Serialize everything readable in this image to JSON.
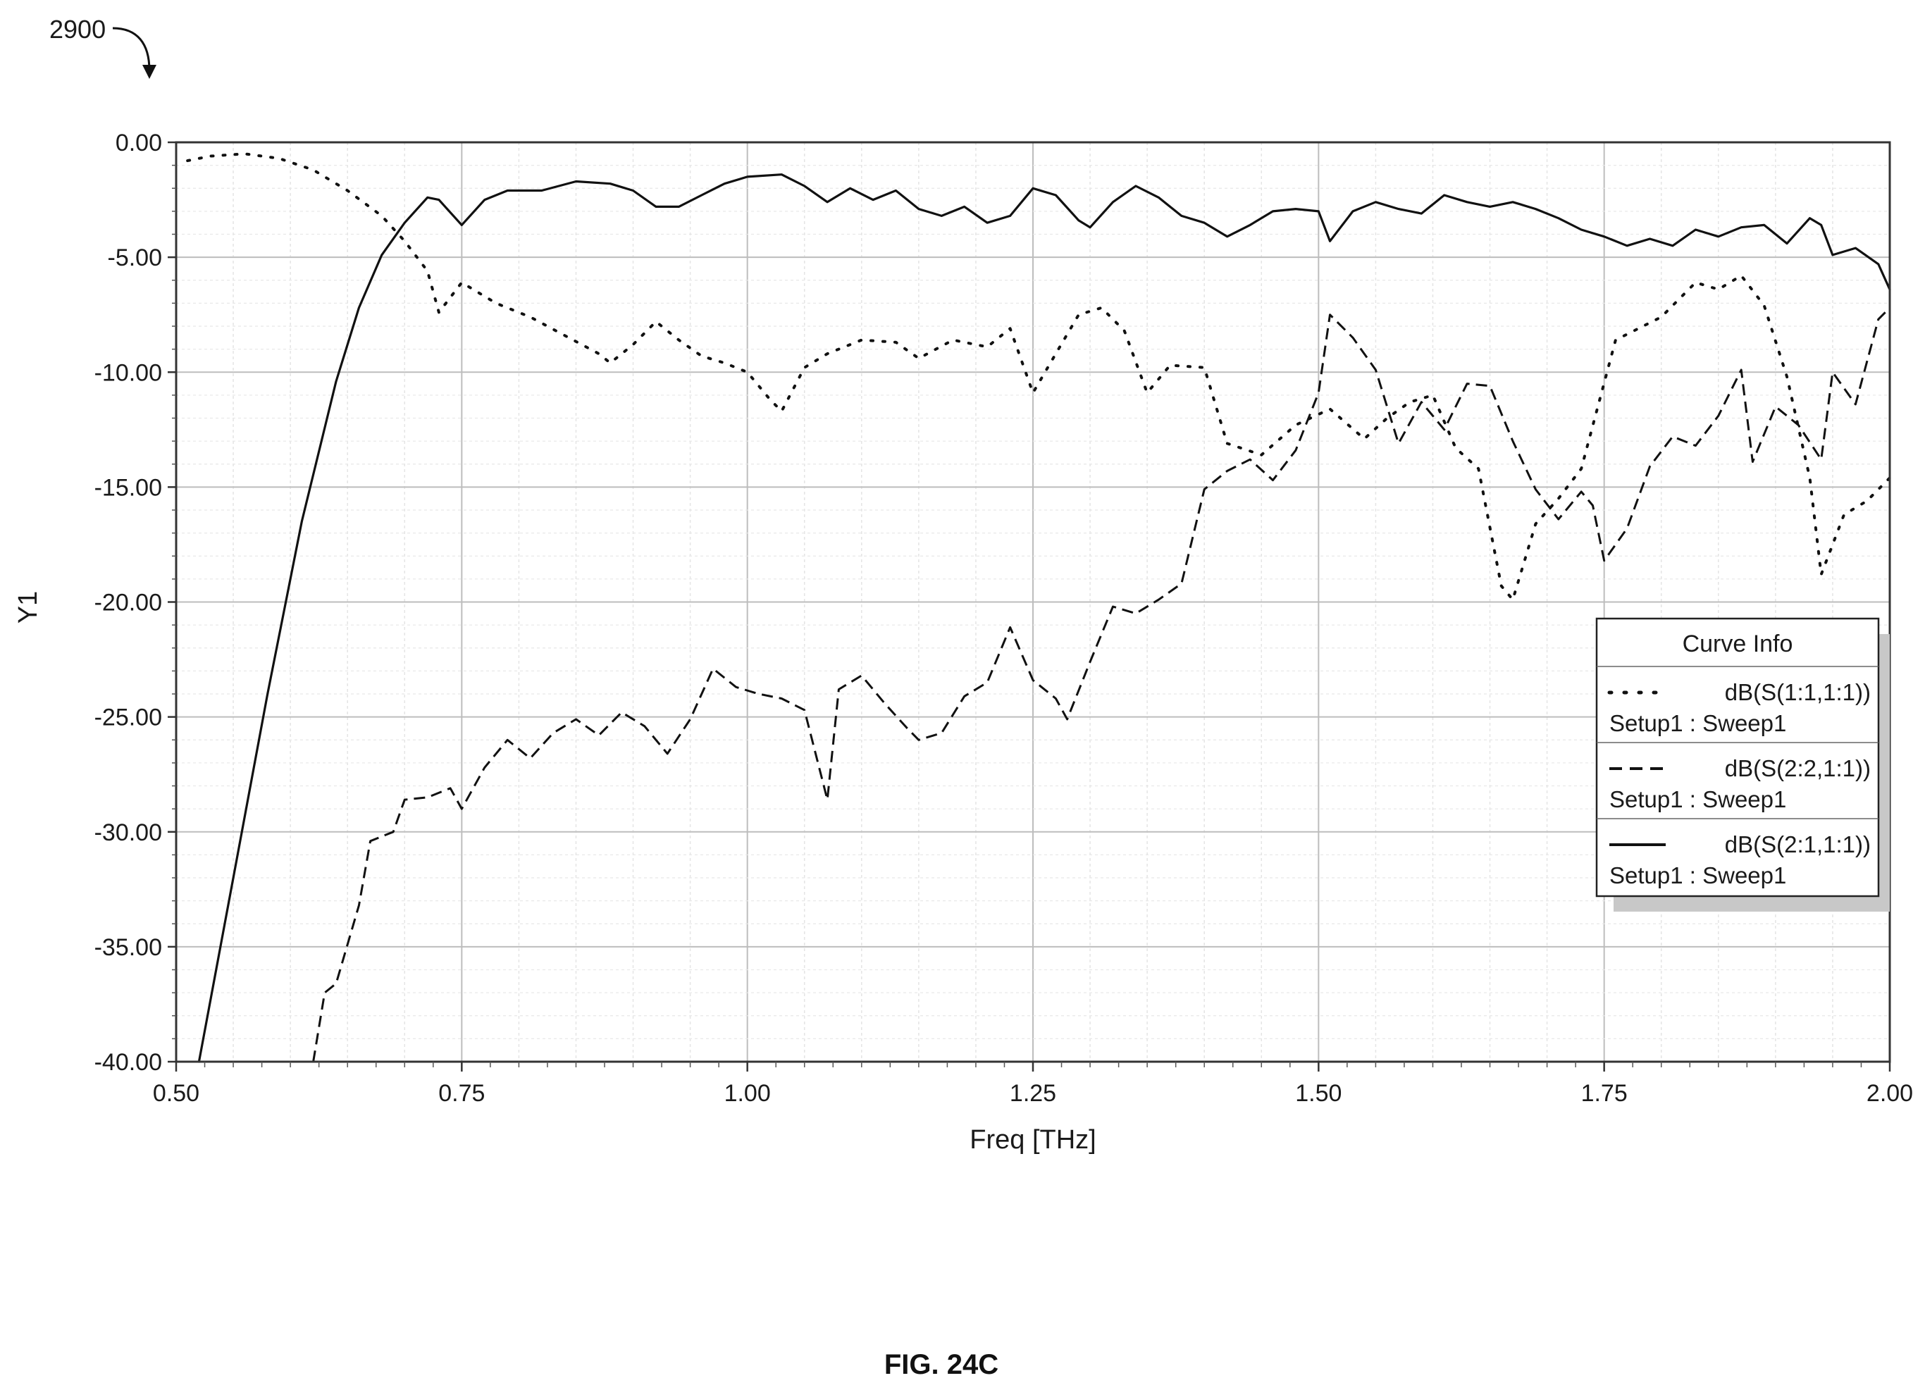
{
  "figure": {
    "reference_numeral": "2900",
    "caption": "FIG. 24C"
  },
  "chart_data": {
    "type": "line",
    "title": "",
    "xlabel": "Freq [THz]",
    "ylabel": "Y1",
    "xlim": [
      0.5,
      2.0
    ],
    "ylim": [
      -40,
      0
    ],
    "x_ticks": [
      "0.50",
      "0.75",
      "1.00",
      "1.25",
      "1.50",
      "1.75",
      "2.00"
    ],
    "y_ticks": [
      "0.00",
      "-5.00",
      "-10.00",
      "-15.00",
      "-20.00",
      "-25.00",
      "-30.00",
      "-35.00",
      "-40.00"
    ],
    "grid": true,
    "legend": {
      "title": "Curve Info",
      "placement": "right"
    },
    "series": [
      {
        "name": "dB(S(1:1,1:1))",
        "setup": "Setup1 : Sweep1",
        "line_style": "dotted",
        "color": "#111111",
        "points": [
          [
            0.51,
            -0.8
          ],
          [
            0.53,
            -0.6
          ],
          [
            0.56,
            -0.5
          ],
          [
            0.59,
            -0.7
          ],
          [
            0.62,
            -1.2
          ],
          [
            0.65,
            -2.1
          ],
          [
            0.68,
            -3.2
          ],
          [
            0.7,
            -4.3
          ],
          [
            0.72,
            -5.6
          ],
          [
            0.73,
            -7.4
          ],
          [
            0.75,
            -6.1
          ],
          [
            0.78,
            -7.0
          ],
          [
            0.81,
            -7.6
          ],
          [
            0.84,
            -8.4
          ],
          [
            0.87,
            -9.2
          ],
          [
            0.88,
            -9.6
          ],
          [
            0.9,
            -8.8
          ],
          [
            0.92,
            -7.8
          ],
          [
            0.94,
            -8.6
          ],
          [
            0.96,
            -9.3
          ],
          [
            0.98,
            -9.6
          ],
          [
            1.0,
            -10.0
          ],
          [
            1.02,
            -11.2
          ],
          [
            1.03,
            -11.7
          ],
          [
            1.05,
            -9.8
          ],
          [
            1.07,
            -9.2
          ],
          [
            1.1,
            -8.6
          ],
          [
            1.13,
            -8.7
          ],
          [
            1.15,
            -9.4
          ],
          [
            1.18,
            -8.6
          ],
          [
            1.21,
            -8.9
          ],
          [
            1.23,
            -8.1
          ],
          [
            1.25,
            -10.9
          ],
          [
            1.27,
            -9.2
          ],
          [
            1.29,
            -7.5
          ],
          [
            1.31,
            -7.2
          ],
          [
            1.33,
            -8.2
          ],
          [
            1.35,
            -10.9
          ],
          [
            1.37,
            -9.7
          ],
          [
            1.4,
            -9.8
          ],
          [
            1.42,
            -13.1
          ],
          [
            1.45,
            -13.6
          ],
          [
            1.48,
            -12.3
          ],
          [
            1.51,
            -11.6
          ],
          [
            1.54,
            -12.9
          ],
          [
            1.56,
            -12.0
          ],
          [
            1.58,
            -11.3
          ],
          [
            1.6,
            -11.0
          ],
          [
            1.62,
            -13.3
          ],
          [
            1.64,
            -14.2
          ],
          [
            1.66,
            -19.3
          ],
          [
            1.67,
            -19.9
          ],
          [
            1.69,
            -16.6
          ],
          [
            1.71,
            -15.5
          ],
          [
            1.73,
            -14.2
          ],
          [
            1.76,
            -8.6
          ],
          [
            1.78,
            -8.1
          ],
          [
            1.8,
            -7.6
          ],
          [
            1.83,
            -6.1
          ],
          [
            1.85,
            -6.4
          ],
          [
            1.87,
            -5.8
          ],
          [
            1.89,
            -7.1
          ],
          [
            1.91,
            -10.2
          ],
          [
            1.93,
            -14.6
          ],
          [
            1.94,
            -18.8
          ],
          [
            1.96,
            -16.2
          ],
          [
            1.98,
            -15.6
          ],
          [
            2.0,
            -14.6
          ]
        ]
      },
      {
        "name": "dB(S(2:2,1:1))",
        "setup": "Setup1 : Sweep1",
        "line_style": "dashed",
        "color": "#111111",
        "points": [
          [
            0.62,
            -40.0
          ],
          [
            0.63,
            -37.0
          ],
          [
            0.64,
            -36.6
          ],
          [
            0.66,
            -33.2
          ],
          [
            0.67,
            -30.4
          ],
          [
            0.69,
            -30.0
          ],
          [
            0.7,
            -28.6
          ],
          [
            0.72,
            -28.5
          ],
          [
            0.74,
            -28.1
          ],
          [
            0.75,
            -29.0
          ],
          [
            0.77,
            -27.2
          ],
          [
            0.79,
            -26.0
          ],
          [
            0.81,
            -26.8
          ],
          [
            0.83,
            -25.7
          ],
          [
            0.85,
            -25.1
          ],
          [
            0.87,
            -25.8
          ],
          [
            0.89,
            -24.8
          ],
          [
            0.91,
            -25.4
          ],
          [
            0.93,
            -26.6
          ],
          [
            0.95,
            -25.1
          ],
          [
            0.97,
            -22.9
          ],
          [
            0.99,
            -23.7
          ],
          [
            1.01,
            -24.0
          ],
          [
            1.03,
            -24.2
          ],
          [
            1.05,
            -24.7
          ],
          [
            1.07,
            -28.6
          ],
          [
            1.08,
            -23.8
          ],
          [
            1.1,
            -23.2
          ],
          [
            1.12,
            -24.4
          ],
          [
            1.14,
            -25.5
          ],
          [
            1.15,
            -26.0
          ],
          [
            1.17,
            -25.7
          ],
          [
            1.19,
            -24.1
          ],
          [
            1.21,
            -23.5
          ],
          [
            1.23,
            -21.1
          ],
          [
            1.25,
            -23.4
          ],
          [
            1.27,
            -24.2
          ],
          [
            1.28,
            -25.1
          ],
          [
            1.3,
            -22.6
          ],
          [
            1.32,
            -20.2
          ],
          [
            1.34,
            -20.5
          ],
          [
            1.36,
            -19.9
          ],
          [
            1.38,
            -19.2
          ],
          [
            1.4,
            -15.1
          ],
          [
            1.42,
            -14.3
          ],
          [
            1.44,
            -13.8
          ],
          [
            1.46,
            -14.7
          ],
          [
            1.48,
            -13.4
          ],
          [
            1.5,
            -10.9
          ],
          [
            1.51,
            -7.5
          ],
          [
            1.53,
            -8.5
          ],
          [
            1.55,
            -9.9
          ],
          [
            1.57,
            -13.1
          ],
          [
            1.59,
            -11.3
          ],
          [
            1.61,
            -12.5
          ],
          [
            1.63,
            -10.5
          ],
          [
            1.65,
            -10.6
          ],
          [
            1.67,
            -13.0
          ],
          [
            1.69,
            -15.1
          ],
          [
            1.71,
            -16.4
          ],
          [
            1.73,
            -15.2
          ],
          [
            1.74,
            -15.8
          ],
          [
            1.75,
            -18.2
          ],
          [
            1.77,
            -16.8
          ],
          [
            1.79,
            -14.1
          ],
          [
            1.81,
            -12.8
          ],
          [
            1.83,
            -13.2
          ],
          [
            1.85,
            -11.9
          ],
          [
            1.87,
            -9.9
          ],
          [
            1.88,
            -13.9
          ],
          [
            1.9,
            -11.5
          ],
          [
            1.92,
            -12.3
          ],
          [
            1.94,
            -13.8
          ],
          [
            1.95,
            -10.0
          ],
          [
            1.97,
            -11.4
          ],
          [
            1.99,
            -7.7
          ],
          [
            2.0,
            -7.2
          ]
        ]
      },
      {
        "name": "dB(S(2:1,1:1))",
        "setup": "Setup1 : Sweep1",
        "line_style": "solid",
        "color": "#111111",
        "points": [
          [
            0.52,
            -40.0
          ],
          [
            0.55,
            -32.0
          ],
          [
            0.58,
            -24.0
          ],
          [
            0.61,
            -16.5
          ],
          [
            0.64,
            -10.4
          ],
          [
            0.66,
            -7.2
          ],
          [
            0.68,
            -4.9
          ],
          [
            0.7,
            -3.5
          ],
          [
            0.72,
            -2.4
          ],
          [
            0.73,
            -2.5
          ],
          [
            0.75,
            -3.6
          ],
          [
            0.77,
            -2.5
          ],
          [
            0.79,
            -2.1
          ],
          [
            0.82,
            -2.1
          ],
          [
            0.85,
            -1.7
          ],
          [
            0.88,
            -1.8
          ],
          [
            0.9,
            -2.1
          ],
          [
            0.92,
            -2.8
          ],
          [
            0.94,
            -2.8
          ],
          [
            0.96,
            -2.3
          ],
          [
            0.98,
            -1.8
          ],
          [
            1.0,
            -1.5
          ],
          [
            1.03,
            -1.4
          ],
          [
            1.05,
            -1.9
          ],
          [
            1.07,
            -2.6
          ],
          [
            1.09,
            -2.0
          ],
          [
            1.11,
            -2.5
          ],
          [
            1.13,
            -2.1
          ],
          [
            1.15,
            -2.9
          ],
          [
            1.17,
            -3.2
          ],
          [
            1.19,
            -2.8
          ],
          [
            1.21,
            -3.5
          ],
          [
            1.23,
            -3.2
          ],
          [
            1.25,
            -2.0
          ],
          [
            1.27,
            -2.3
          ],
          [
            1.29,
            -3.4
          ],
          [
            1.3,
            -3.7
          ],
          [
            1.32,
            -2.6
          ],
          [
            1.34,
            -1.9
          ],
          [
            1.36,
            -2.4
          ],
          [
            1.38,
            -3.2
          ],
          [
            1.4,
            -3.5
          ],
          [
            1.42,
            -4.1
          ],
          [
            1.44,
            -3.6
          ],
          [
            1.46,
            -3.0
          ],
          [
            1.48,
            -2.9
          ],
          [
            1.5,
            -3.0
          ],
          [
            1.51,
            -4.3
          ],
          [
            1.53,
            -3.0
          ],
          [
            1.55,
            -2.6
          ],
          [
            1.57,
            -2.9
          ],
          [
            1.59,
            -3.1
          ],
          [
            1.61,
            -2.3
          ],
          [
            1.63,
            -2.6
          ],
          [
            1.65,
            -2.8
          ],
          [
            1.67,
            -2.6
          ],
          [
            1.69,
            -2.9
          ],
          [
            1.71,
            -3.3
          ],
          [
            1.73,
            -3.8
          ],
          [
            1.75,
            -4.1
          ],
          [
            1.77,
            -4.5
          ],
          [
            1.79,
            -4.2
          ],
          [
            1.81,
            -4.5
          ],
          [
            1.83,
            -3.8
          ],
          [
            1.85,
            -4.1
          ],
          [
            1.87,
            -3.7
          ],
          [
            1.89,
            -3.6
          ],
          [
            1.91,
            -4.4
          ],
          [
            1.93,
            -3.3
          ],
          [
            1.94,
            -3.6
          ],
          [
            1.95,
            -4.9
          ],
          [
            1.97,
            -4.6
          ],
          [
            1.99,
            -5.3
          ],
          [
            2.0,
            -6.4
          ]
        ]
      }
    ]
  }
}
